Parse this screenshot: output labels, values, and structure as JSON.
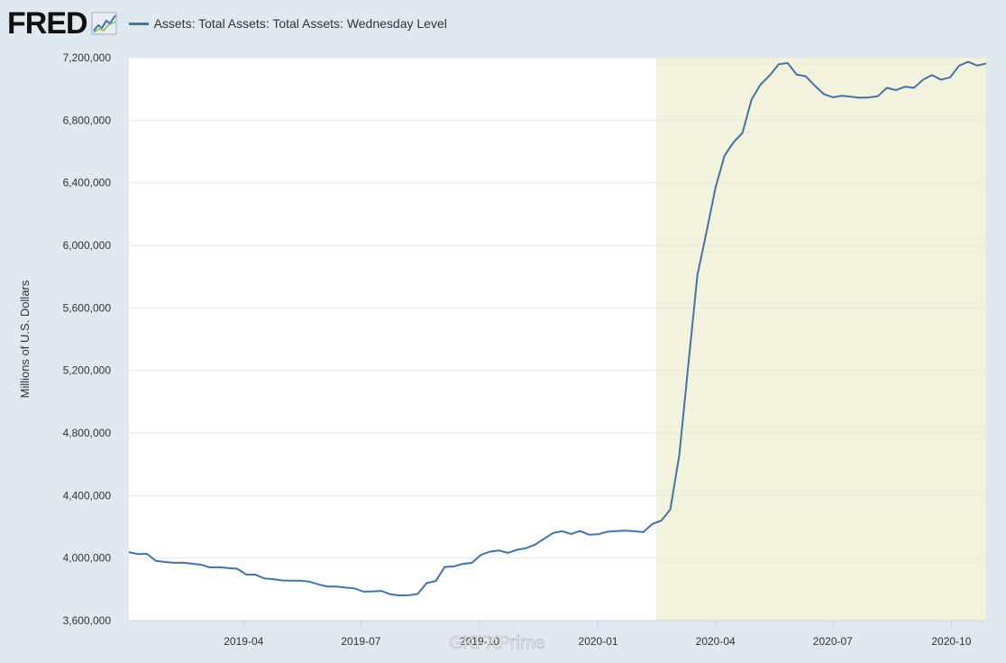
{
  "logo": {
    "text": "FRED",
    "registered": "®"
  },
  "legend": {
    "series_name": "Assets: Total Assets: Total Assets: Wednesday Level"
  },
  "watermark": "GKFXPrime",
  "colors": {
    "line": "#4572a7",
    "recession": "#f3f2dc",
    "background": "#e1e9f0",
    "plot": "#ffffff",
    "grid": "#e6e6e6"
  },
  "chart_data": {
    "type": "line",
    "ylabel": "Millions of U.S. Dollars",
    "xlabel": "",
    "ylim": [
      3600000,
      7200000
    ],
    "yticks": [
      3600000,
      4000000,
      4400000,
      4800000,
      5200000,
      5600000,
      6000000,
      6400000,
      6800000,
      7200000
    ],
    "ytick_labels": [
      "3,600,000",
      "4,000,000",
      "4,400,000",
      "4,800,000",
      "5,200,000",
      "5,600,000",
      "6,000,000",
      "6,400,000",
      "6,800,000",
      "7,200,000"
    ],
    "xlim": [
      "2019-01-02",
      "2020-10-28"
    ],
    "xticks": [
      "2019-04-01",
      "2019-07-01",
      "2019-10-01",
      "2020-01-01",
      "2020-04-01",
      "2020-07-01",
      "2020-10-01"
    ],
    "xtick_labels": [
      "2019-04",
      "2019-07",
      "2019-10",
      "2020-01",
      "2020-04",
      "2020-07",
      "2020-10"
    ],
    "grid": true,
    "recession_shading": {
      "start": "2020-02-15",
      "end": "2020-10-28"
    },
    "series": [
      {
        "name": "Assets: Total Assets: Total Assets: Wednesday Level",
        "x": [
          "2019-01-02",
          "2019-01-09",
          "2019-01-16",
          "2019-01-23",
          "2019-01-30",
          "2019-02-06",
          "2019-02-13",
          "2019-02-20",
          "2019-02-27",
          "2019-03-06",
          "2019-03-13",
          "2019-03-20",
          "2019-03-27",
          "2019-04-03",
          "2019-04-10",
          "2019-04-17",
          "2019-04-24",
          "2019-05-01",
          "2019-05-08",
          "2019-05-15",
          "2019-05-22",
          "2019-05-29",
          "2019-06-05",
          "2019-06-12",
          "2019-06-19",
          "2019-06-26",
          "2019-07-03",
          "2019-07-10",
          "2019-07-17",
          "2019-07-24",
          "2019-07-31",
          "2019-08-07",
          "2019-08-14",
          "2019-08-21",
          "2019-08-28",
          "2019-09-04",
          "2019-09-11",
          "2019-09-18",
          "2019-09-25",
          "2019-10-02",
          "2019-10-09",
          "2019-10-16",
          "2019-10-23",
          "2019-10-30",
          "2019-11-06",
          "2019-11-13",
          "2019-11-20",
          "2019-11-27",
          "2019-12-04",
          "2019-12-11",
          "2019-12-18",
          "2019-12-25",
          "2020-01-01",
          "2020-01-08",
          "2020-01-15",
          "2020-01-22",
          "2020-01-29",
          "2020-02-05",
          "2020-02-12",
          "2020-02-19",
          "2020-02-26",
          "2020-03-04",
          "2020-03-11",
          "2020-03-18",
          "2020-03-25",
          "2020-04-01",
          "2020-04-08",
          "2020-04-15",
          "2020-04-22",
          "2020-04-29",
          "2020-05-06",
          "2020-05-13",
          "2020-05-20",
          "2020-05-27",
          "2020-06-03",
          "2020-06-10",
          "2020-06-17",
          "2020-06-24",
          "2020-07-01",
          "2020-07-08",
          "2020-07-15",
          "2020-07-22",
          "2020-07-29",
          "2020-08-05",
          "2020-08-12",
          "2020-08-19",
          "2020-08-26",
          "2020-09-02",
          "2020-09-09",
          "2020-09-16",
          "2020-09-23",
          "2020-09-30",
          "2020-10-07",
          "2020-10-14",
          "2020-10-21",
          "2020-10-28"
        ],
        "values": [
          4038000,
          4026000,
          4027000,
          3982000,
          3975000,
          3970000,
          3971000,
          3964000,
          3957000,
          3940000,
          3942000,
          3936000,
          3932000,
          3895000,
          3894000,
          3870000,
          3865000,
          3857000,
          3855000,
          3855000,
          3849000,
          3832000,
          3818000,
          3818000,
          3811000,
          3806000,
          3785000,
          3787000,
          3790000,
          3768000,
          3761000,
          3762000,
          3770000,
          3840000,
          3853000,
          3943000,
          3946000,
          3963000,
          3969000,
          4020000,
          4041000,
          4048000,
          4033000,
          4053000,
          4063000,
          4086000,
          4123000,
          4160000,
          4172000,
          4154000,
          4173000,
          4150000,
          4152000,
          4168000,
          4173000,
          4175000,
          4172000,
          4166000,
          4218000,
          4240000,
          4311000,
          4660000,
          5242000,
          5812000,
          6083000,
          6368000,
          6573000,
          6659000,
          6720000,
          6932000,
          7029000,
          7086000,
          7158000,
          7166000,
          7092000,
          7082000,
          7022000,
          6968000,
          6947000,
          6957000,
          6950000,
          6944000,
          6946000,
          6954000,
          7008000,
          6993000,
          7015000,
          7008000,
          7059000,
          7089000,
          7060000,
          7074000,
          7149000,
          7174000,
          7150000,
          7163000
        ]
      }
    ]
  }
}
